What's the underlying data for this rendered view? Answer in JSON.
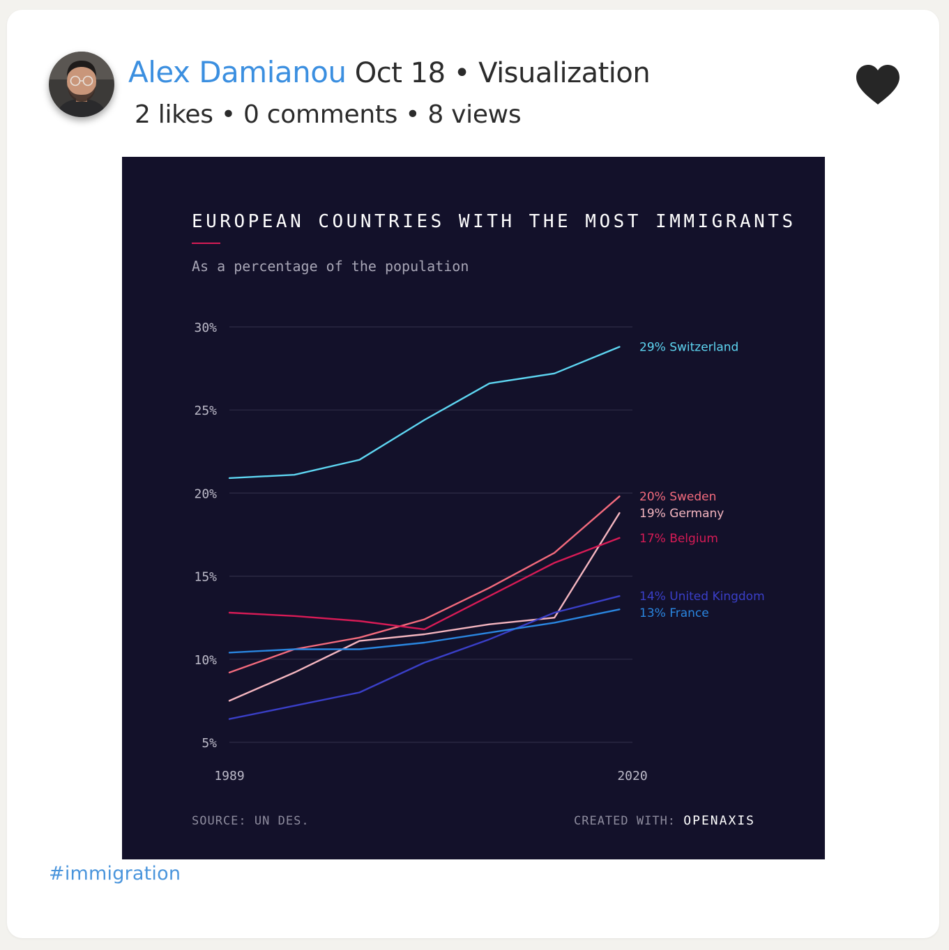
{
  "post": {
    "author": "Alex Damianou",
    "date": "Oct 18",
    "category": "Visualization",
    "separator": "•",
    "stats": {
      "likes": "2 likes",
      "comments": "0 comments",
      "views": "8 views"
    },
    "hashtag": "#immigration",
    "like_icon": "heart-icon",
    "avatar_icon": "avatar-photo"
  },
  "chart_data": {
    "type": "line",
    "title": "EUROPEAN COUNTRIES WITH THE MOST IMMIGRANTS",
    "subtitle": "As a percentage of the population",
    "x": [
      1989,
      1994,
      1999,
      2004,
      2009,
      2014,
      2019
    ],
    "x_tick_labels": [
      "1989",
      "2020"
    ],
    "xlim": [
      1989,
      2020
    ],
    "ylim": [
      5,
      30
    ],
    "y_ticks": [
      5,
      10,
      15,
      20,
      25,
      30
    ],
    "y_tick_labels": [
      "5%",
      "10%",
      "15%",
      "20%",
      "25%",
      "30%"
    ],
    "grid": true,
    "background": "#13112a",
    "series": [
      {
        "name": "Switzerland",
        "end_label": "29% Switzerland",
        "color": "#5ed6f2",
        "values": [
          20.9,
          21.1,
          22.0,
          24.4,
          26.6,
          27.2,
          28.8
        ]
      },
      {
        "name": "Sweden",
        "end_label": "20% Sweden",
        "color": "#f46b7d",
        "values": [
          9.2,
          10.6,
          11.3,
          12.4,
          14.3,
          16.4,
          19.8
        ]
      },
      {
        "name": "Germany",
        "end_label": "19% Germany",
        "color": "#f5b6c0",
        "values": [
          7.5,
          9.2,
          11.1,
          11.5,
          12.1,
          12.5,
          18.8
        ]
      },
      {
        "name": "Belgium",
        "end_label": "17% Belgium",
        "color": "#d81b56",
        "values": [
          12.8,
          12.6,
          12.3,
          11.8,
          13.8,
          15.8,
          17.3
        ]
      },
      {
        "name": "United Kingdom",
        "end_label": "14% United Kingdom",
        "color": "#3a3fc8",
        "values": [
          6.4,
          7.2,
          8.0,
          9.8,
          11.2,
          12.8,
          13.8
        ]
      },
      {
        "name": "France",
        "end_label": "13% France",
        "color": "#2a86e0",
        "values": [
          10.4,
          10.6,
          10.6,
          11.0,
          11.6,
          12.2,
          13.0
        ]
      }
    ],
    "source_label": "SOURCE:",
    "source": "UN DES.",
    "created_with_label": "CREATED WITH:",
    "created_with": "OPENAXIS"
  }
}
